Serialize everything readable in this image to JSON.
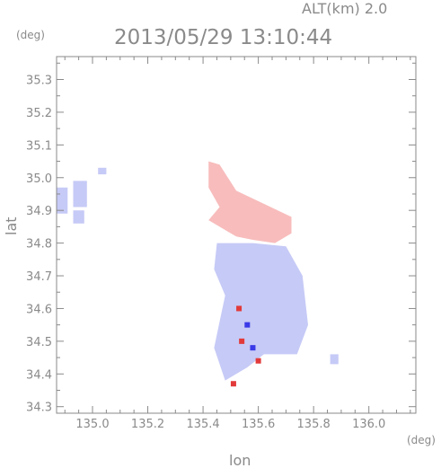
{
  "header": {
    "altitude": "ALT(km)  2.0",
    "timestamp": "2013/05/29 13:10:44"
  },
  "chart_data": {
    "type": "heatmap",
    "title": "2013/05/29 13:10:44",
    "subtitle": "ALT(km)  2.0",
    "xlabel": "lon",
    "ylabel": "lat",
    "x_unit": "(deg)",
    "y_unit": "(deg)",
    "xlim": [
      134.87,
      136.17
    ],
    "ylim": [
      34.28,
      35.37
    ],
    "x_ticks": [
      "135.0",
      "135.2",
      "135.4",
      "135.6",
      "135.8",
      "136.0"
    ],
    "y_ticks": [
      "34.3",
      "34.4",
      "34.5",
      "34.6",
      "34.7",
      "34.8",
      "34.9",
      "35.0",
      "35.1",
      "35.2",
      "35.3"
    ],
    "grid": false,
    "legend": "none",
    "colors": {
      "positive": "#f5a6a6",
      "negative": "#aeb4f2",
      "axis": "#8a8a8a",
      "strong_pos": "#e23a3a",
      "strong_neg": "#3a3ae8"
    },
    "regions": [
      {
        "sign": "positive",
        "lon": [
          135.42,
          135.52,
          135.58,
          135.66,
          135.72,
          135.72,
          135.62,
          135.52,
          135.46,
          135.42,
          135.42,
          135.46
        ],
        "lat": [
          34.87,
          34.82,
          34.81,
          34.8,
          34.83,
          34.88,
          34.92,
          34.96,
          35.04,
          35.05,
          34.97,
          34.91
        ]
      },
      {
        "sign": "negative",
        "lon": [
          135.45,
          135.58,
          135.7,
          135.76,
          135.78,
          135.74,
          135.62,
          135.56,
          135.48,
          135.44,
          135.46,
          135.48,
          135.44
        ],
        "lat": [
          34.8,
          34.8,
          34.79,
          34.7,
          34.55,
          34.46,
          34.46,
          34.42,
          34.38,
          34.48,
          34.56,
          34.64,
          34.72
        ]
      },
      {
        "sign": "negative",
        "lon": [
          134.87,
          134.91,
          134.91,
          134.87
        ],
        "lat": [
          34.97,
          34.97,
          34.89,
          34.89
        ]
      },
      {
        "sign": "negative",
        "lon": [
          134.93,
          134.98,
          134.98,
          134.93
        ],
        "lat": [
          34.99,
          34.99,
          34.91,
          34.91
        ]
      },
      {
        "sign": "negative",
        "lon": [
          134.93,
          134.97,
          134.97,
          134.93
        ],
        "lat": [
          34.9,
          34.9,
          34.86,
          34.86
        ]
      },
      {
        "sign": "negative",
        "lon": [
          135.02,
          135.05,
          135.05,
          135.02
        ],
        "lat": [
          35.03,
          35.03,
          35.01,
          35.01
        ]
      },
      {
        "sign": "negative",
        "lon": [
          135.86,
          135.89,
          135.89,
          135.86
        ],
        "lat": [
          34.46,
          34.46,
          34.43,
          34.43
        ]
      }
    ],
    "clusters": [
      {
        "sign": "strong_pos",
        "lon": 135.53,
        "lat": 34.6
      },
      {
        "sign": "strong_neg",
        "lon": 135.56,
        "lat": 34.55
      },
      {
        "sign": "strong_pos",
        "lon": 135.54,
        "lat": 34.5
      },
      {
        "sign": "strong_neg",
        "lon": 135.58,
        "lat": 34.48
      },
      {
        "sign": "strong_pos",
        "lon": 135.6,
        "lat": 34.44
      },
      {
        "sign": "strong_pos",
        "lon": 135.51,
        "lat": 34.37
      }
    ]
  }
}
